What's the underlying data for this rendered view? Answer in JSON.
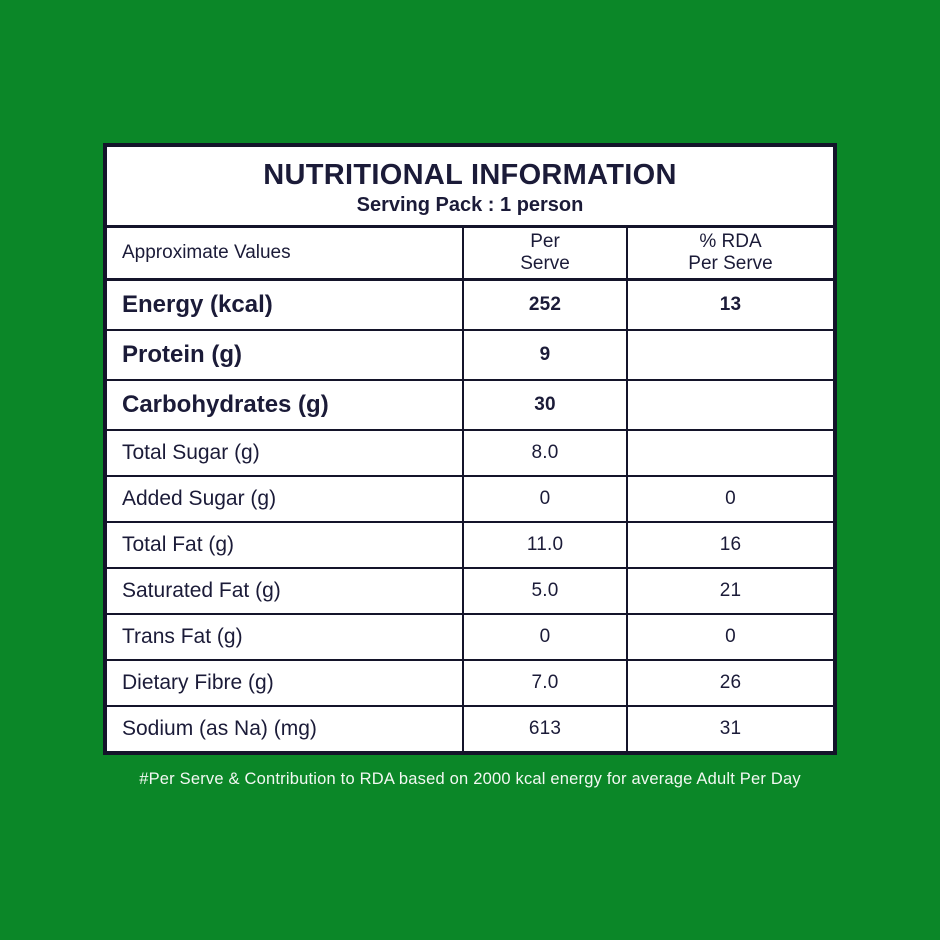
{
  "colors": {
    "background_green": "#0b8728",
    "panel_background": "#ffffff",
    "text_navy": "#1b1b38",
    "border_dark": "#14142a",
    "footer_text": "#f2f8f2"
  },
  "header": {
    "title": "NUTRITIONAL INFORMATION",
    "subtitle": "Serving Pack : 1 person"
  },
  "table": {
    "columns": [
      {
        "label": "Approximate Values"
      },
      {
        "label": "Per\nServe"
      },
      {
        "label": "% RDA\nPer Serve"
      }
    ],
    "rows": [
      {
        "label": "Energy (kcal)",
        "per_serve": "252",
        "rda_per_serve": "13",
        "emphasis": true
      },
      {
        "label": "Protein (g)",
        "per_serve": "9",
        "rda_per_serve": "",
        "emphasis": true
      },
      {
        "label": "Carbohydrates (g)",
        "per_serve": "30",
        "rda_per_serve": "",
        "emphasis": true
      },
      {
        "label": "Total Sugar (g)",
        "per_serve": "8.0",
        "rda_per_serve": "",
        "emphasis": false
      },
      {
        "label": "Added Sugar (g)",
        "per_serve": "0",
        "rda_per_serve": "0",
        "emphasis": false
      },
      {
        "label": "Total Fat (g)",
        "per_serve": "11.0",
        "rda_per_serve": "16",
        "emphasis": false
      },
      {
        "label": "Saturated Fat (g)",
        "per_serve": "5.0",
        "rda_per_serve": "21",
        "emphasis": false
      },
      {
        "label": "Trans Fat (g)",
        "per_serve": "0",
        "rda_per_serve": "0",
        "emphasis": false
      },
      {
        "label": "Dietary Fibre (g)",
        "per_serve": "7.0",
        "rda_per_serve": "26",
        "emphasis": false
      },
      {
        "label": "Sodium (as Na) (mg)",
        "per_serve": "613",
        "rda_per_serve": "31",
        "emphasis": false
      }
    ]
  },
  "footer": {
    "note": "#Per Serve & Contribution to RDA based on 2000 kcal energy for average Adult Per Day"
  }
}
